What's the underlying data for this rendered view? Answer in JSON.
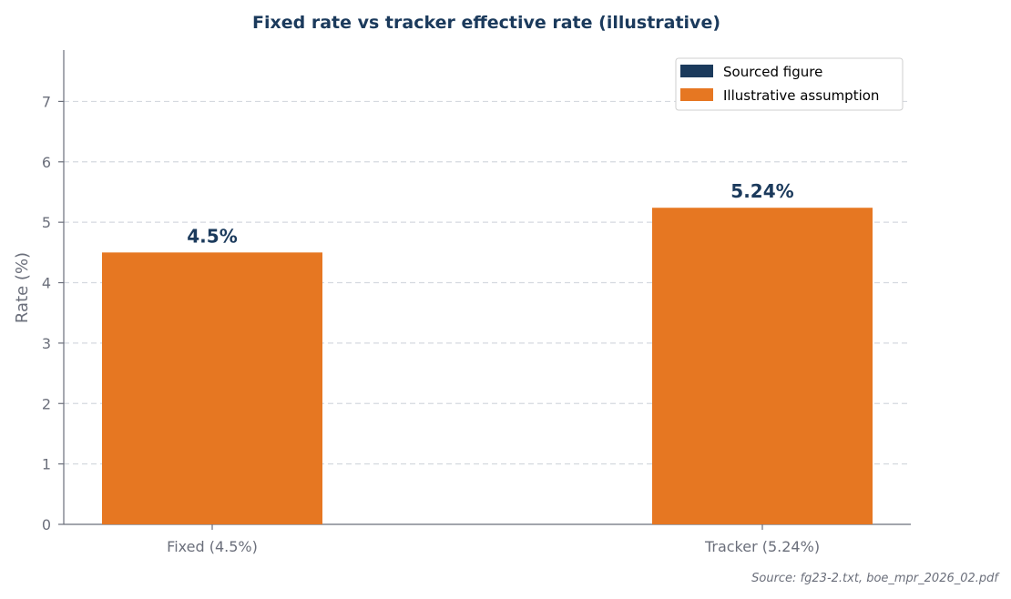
{
  "chart_data": {
    "type": "bar",
    "title": "Fixed rate vs tracker effective rate (illustrative)",
    "xlabel": "",
    "ylabel": "Rate (%)",
    "categories": [
      "Fixed (4.5%)",
      "Tracker (5.24%)"
    ],
    "values": [
      4.5,
      5.24
    ],
    "data_labels": [
      "4.5%",
      "5.24%"
    ],
    "bar_colors": [
      "#e67722",
      "#e67722"
    ],
    "ylim": [
      0,
      7.85
    ],
    "yticks": [
      0,
      1,
      2,
      3,
      4,
      5,
      6,
      7
    ],
    "grid": true,
    "legend_position": "top-right",
    "legend": [
      {
        "label": "Sourced figure",
        "color": "#1b3a5c"
      },
      {
        "label": "Illustrative assumption",
        "color": "#e67722"
      }
    ],
    "source_note": "Source: fg23-2.txt, boe_mpr_2026_02.pdf"
  }
}
